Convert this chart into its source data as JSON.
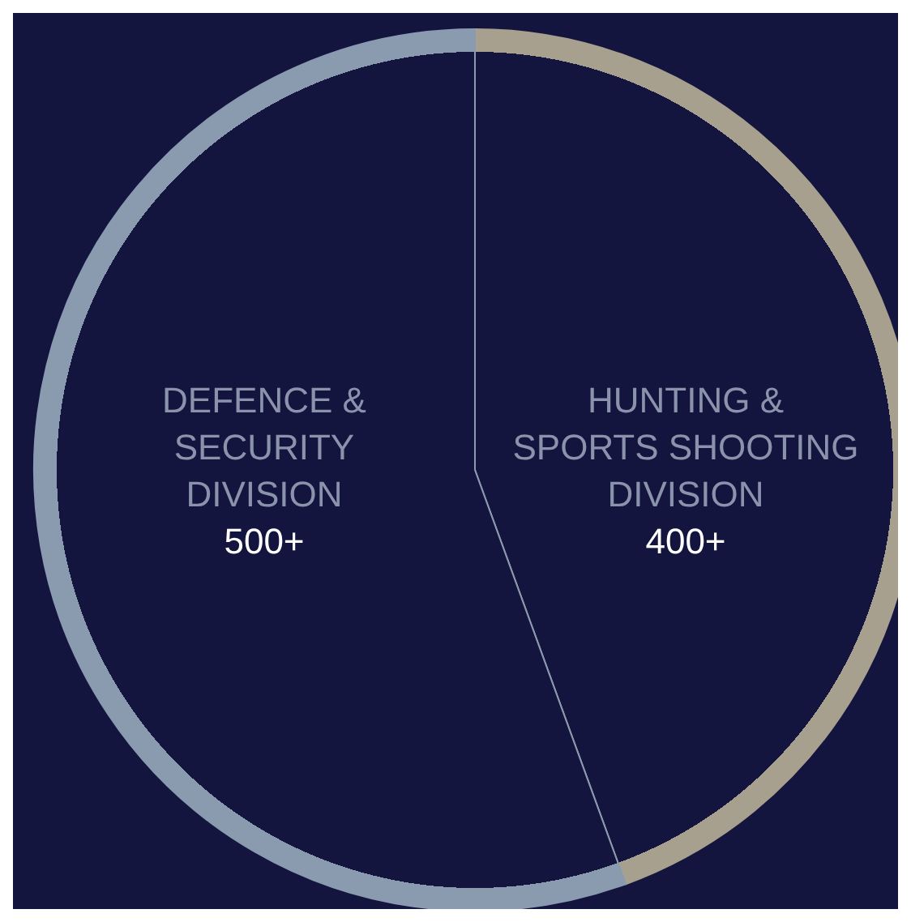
{
  "chart_data": {
    "type": "pie",
    "categories": [
      "HUNTING &\nSPORTS SHOOTING\nDIVISION",
      "DEFENCE &\nSECURITY\nDIVISION"
    ],
    "values": [
      400,
      500
    ],
    "value_labels": [
      "400+",
      "500+"
    ],
    "colors": [
      "#a8a08e",
      "#8a9bb0"
    ]
  }
}
